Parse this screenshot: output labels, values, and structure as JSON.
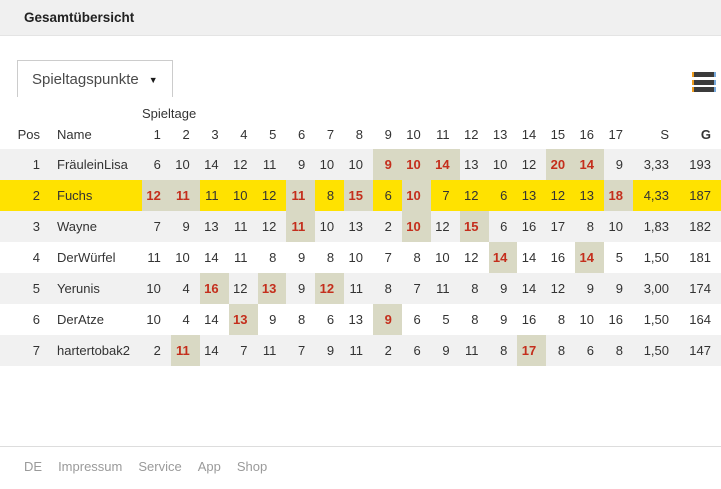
{
  "header": {
    "title": "Gesamtübersicht"
  },
  "toolbar": {
    "dropdown": {
      "label": "Spieltagspunkte"
    },
    "menu_icon": "hamburger-menu"
  },
  "table": {
    "group_header": "Spieltage",
    "columns": {
      "pos": "Pos",
      "name": "Name",
      "matchdays": [
        "1",
        "2",
        "3",
        "4",
        "5",
        "6",
        "7",
        "8",
        "9",
        "10",
        "11",
        "12",
        "13",
        "14",
        "15",
        "16",
        "17"
      ],
      "s": "S",
      "g": "G"
    },
    "colors": {
      "best_cell_bg": "#d9d9c4",
      "best_cell_text": "#c42e1c",
      "user_row_bg": "#ffe200",
      "stripe_bg": "#f1f1f1"
    },
    "rows": [
      {
        "pos": "1",
        "name": "FräuleinLisa",
        "points": [
          6,
          10,
          14,
          12,
          11,
          9,
          10,
          10,
          9,
          10,
          14,
          13,
          10,
          12,
          20,
          14,
          9
        ],
        "best": [
          9,
          10,
          11,
          15,
          16
        ],
        "s": "3,33",
        "g": "193",
        "is_user_row": false
      },
      {
        "pos": "2",
        "name": "Fuchs",
        "points": [
          12,
          11,
          11,
          10,
          12,
          11,
          8,
          15,
          6,
          10,
          7,
          12,
          6,
          13,
          12,
          13,
          18
        ],
        "best": [
          1,
          2,
          6,
          8,
          10,
          17
        ],
        "s": "4,33",
        "g": "187",
        "is_user_row": true
      },
      {
        "pos": "3",
        "name": "Wayne",
        "points": [
          7,
          9,
          13,
          11,
          12,
          11,
          10,
          13,
          2,
          10,
          12,
          15,
          6,
          16,
          17,
          8,
          10
        ],
        "best": [
          6,
          10,
          12
        ],
        "s": "1,83",
        "g": "182",
        "is_user_row": false
      },
      {
        "pos": "4",
        "name": "DerWürfel",
        "points": [
          11,
          10,
          14,
          11,
          8,
          9,
          8,
          10,
          7,
          8,
          10,
          12,
          14,
          14,
          16,
          14,
          5
        ],
        "best": [
          13,
          16
        ],
        "s": "1,50",
        "g": "181",
        "is_user_row": false
      },
      {
        "pos": "5",
        "name": "Yerunis",
        "points": [
          10,
          4,
          16,
          12,
          13,
          9,
          12,
          11,
          8,
          7,
          11,
          8,
          9,
          14,
          12,
          9,
          9
        ],
        "best": [
          3,
          5,
          7
        ],
        "s": "3,00",
        "g": "174",
        "is_user_row": false
      },
      {
        "pos": "6",
        "name": "DerAtze",
        "points": [
          10,
          4,
          14,
          13,
          9,
          8,
          6,
          13,
          9,
          6,
          5,
          8,
          9,
          16,
          8,
          10,
          16
        ],
        "best": [
          4,
          9
        ],
        "s": "1,50",
        "g": "164",
        "is_user_row": false
      },
      {
        "pos": "7",
        "name": "hartertobak2",
        "points": [
          2,
          11,
          14,
          7,
          11,
          7,
          9,
          11,
          2,
          6,
          9,
          11,
          8,
          17,
          8,
          6,
          8
        ],
        "best": [
          2,
          14
        ],
        "s": "1,50",
        "g": "147",
        "is_user_row": false
      }
    ]
  },
  "footer": {
    "links": [
      "DE",
      "Impressum",
      "Service",
      "App",
      "Shop"
    ]
  }
}
